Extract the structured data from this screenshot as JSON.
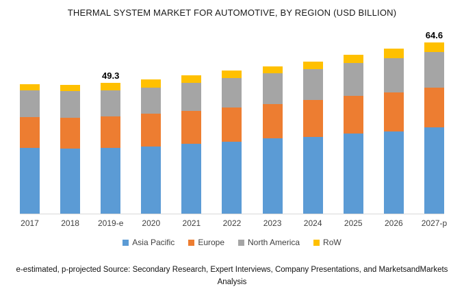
{
  "title": "THERMAL SYSTEM MARKET FOR AUTOMOTIVE, BY REGION (USD BILLION)",
  "chart_data": {
    "type": "bar",
    "stacked": true,
    "title": "THERMAL SYSTEM MARKET FOR AUTOMOTIVE, BY REGION (USD BILLION)",
    "xlabel": "",
    "ylabel": "USD Billion",
    "grid": false,
    "legend_position": "bottom",
    "axis_line_color": "#d9d9d9",
    "categories": [
      "2017",
      "2018",
      "2019-e",
      "2020",
      "2021",
      "2022",
      "2023",
      "2024",
      "2025",
      "2026",
      "2027-p"
    ],
    "series": [
      {
        "name": "Asia Pacific",
        "color": "#5B9BD5",
        "values": [
          24.8,
          24.6,
          24.8,
          25.3,
          26.4,
          27.1,
          28.4,
          28.9,
          30.2,
          31.0,
          32.6
        ]
      },
      {
        "name": "Europe",
        "color": "#ED7D31",
        "values": [
          11.6,
          11.6,
          11.9,
          12.4,
          12.4,
          12.9,
          12.9,
          14.0,
          14.2,
          14.7,
          15.0
        ]
      },
      {
        "name": "North America",
        "color": "#A5A5A5",
        "values": [
          10.1,
          10.1,
          9.8,
          9.8,
          10.6,
          11.1,
          11.6,
          11.6,
          12.4,
          12.9,
          13.3
        ]
      },
      {
        "name": "RoW",
        "color": "#FFC000",
        "values": [
          2.3,
          2.3,
          2.8,
          3.1,
          2.8,
          2.8,
          2.8,
          2.8,
          3.1,
          3.6,
          3.7
        ]
      }
    ],
    "totals": [
      48.8,
      48.6,
      49.3,
      50.6,
      52.2,
      53.9,
      55.7,
      57.3,
      59.9,
      62.2,
      64.6
    ],
    "annotations": [
      {
        "category": "2019-e",
        "label": "49.3"
      },
      {
        "category": "2027-p",
        "label": "64.6"
      }
    ]
  },
  "footer": {
    "line1": "e-estimated, p-projected Source: Secondary Research, Expert Interviews, Company Presentations, and MarketsandMarkets",
    "line2": "Analysis"
  }
}
